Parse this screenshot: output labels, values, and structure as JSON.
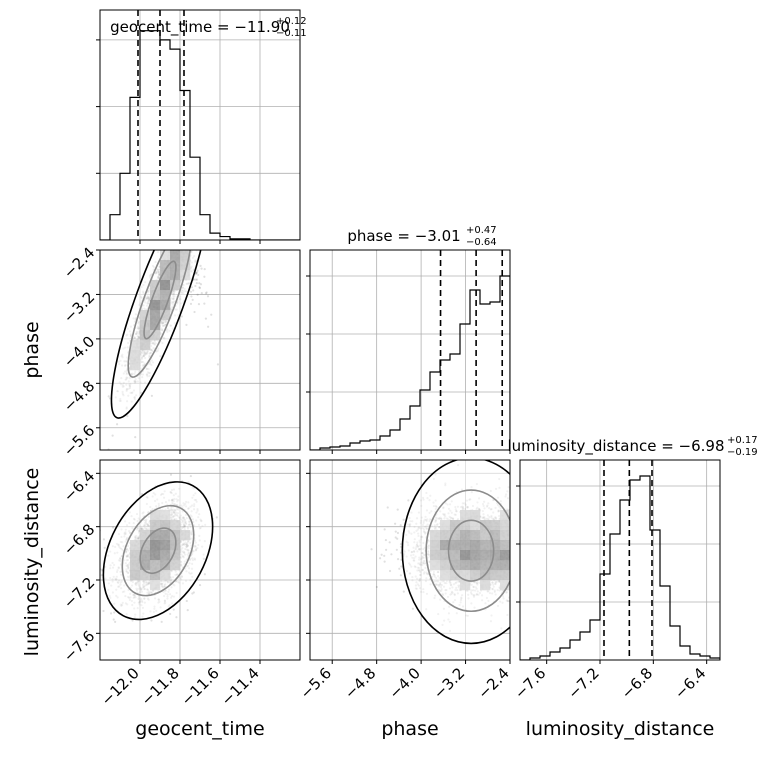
{
  "chart_data": [
    {
      "type": "histogram",
      "param": "geocent_time",
      "title_main": "geocent_time = −11.90",
      "title_sup": "+0.12",
      "title_sub": "−0.11",
      "xlim": [
        -12.2,
        -11.2
      ],
      "ylim": [
        0,
        1.0
      ],
      "x_ticks": [
        -12.0,
        -11.8,
        -11.6,
        -11.4
      ],
      "y_ticks": [
        0.29,
        0.58,
        0.87
      ],
      "quantiles": [
        -12.01,
        -11.9,
        -11.78
      ],
      "bin_edges": [
        -12.2,
        -12.15,
        -12.1,
        -12.05,
        -12.0,
        -11.95,
        -11.9,
        -11.85,
        -11.8,
        -11.75,
        -11.7,
        -11.65,
        -11.6,
        -11.55,
        -11.5,
        -11.45,
        -11.4,
        -11.35,
        -11.3,
        -11.25,
        -11.2
      ],
      "counts": [
        0.0,
        0.11,
        0.29,
        0.62,
        0.91,
        0.91,
        0.87,
        0.83,
        0.65,
        0.36,
        0.11,
        0.03,
        0.015,
        0.005,
        0.005,
        0.0,
        0.0,
        0.0,
        0.0,
        0.0
      ]
    },
    {
      "type": "histogram",
      "param": "phase",
      "title_main": "phase = −3.01",
      "title_sup": "+0.47",
      "title_sub": "−0.64",
      "xlim": [
        -6.0,
        -2.4
      ],
      "ylim": [
        0,
        1.0
      ],
      "x_ticks": [
        -5.6,
        -4.8,
        -4.0,
        -3.2,
        -2.4
      ],
      "y_ticks": [
        0.29,
        0.58,
        0.87
      ],
      "quantiles": [
        -3.65,
        -3.01,
        -2.54
      ],
      "bin_edges": [
        -6.0,
        -5.82,
        -5.64,
        -5.46,
        -5.28,
        -5.1,
        -4.92,
        -4.74,
        -4.56,
        -4.38,
        -4.2,
        -4.02,
        -3.84,
        -3.66,
        -3.48,
        -3.3,
        -3.12,
        -2.94,
        -2.76,
        -2.58,
        -2.4
      ],
      "counts": [
        0.0,
        0.01,
        0.015,
        0.02,
        0.035,
        0.045,
        0.05,
        0.07,
        0.1,
        0.155,
        0.22,
        0.3,
        0.39,
        0.45,
        0.48,
        0.63,
        0.8,
        0.73,
        0.74,
        0.87
      ]
    },
    {
      "type": "histogram",
      "param": "luminosity_distance",
      "title_main": "luminosity_distance = −6.98",
      "title_sup": "+0.17",
      "title_sub": "−0.19",
      "xlim": [
        -7.8,
        -6.3
      ],
      "ylim": [
        0,
        1.0
      ],
      "x_ticks": [
        -7.6,
        -7.2,
        -6.8,
        -6.4
      ],
      "y_ticks": [
        0.29,
        0.58,
        0.87
      ],
      "quantiles": [
        -7.17,
        -6.98,
        -6.81
      ],
      "bin_edges": [
        -7.8,
        -7.725,
        -7.65,
        -7.575,
        -7.5,
        -7.425,
        -7.35,
        -7.275,
        -7.2,
        -7.125,
        -7.05,
        -6.975,
        -6.9,
        -6.825,
        -6.75,
        -6.675,
        -6.6,
        -6.525,
        -6.45,
        -6.375,
        -6.3
      ],
      "counts": [
        0.0,
        0.01,
        0.02,
        0.04,
        0.06,
        0.1,
        0.14,
        0.2,
        0.43,
        0.63,
        0.8,
        0.9,
        0.92,
        0.65,
        0.37,
        0.17,
        0.07,
        0.03,
        0.02,
        0.01
      ]
    },
    {
      "type": "scatter",
      "x_param": "geocent_time",
      "y_param": "phase",
      "xlim": [
        -12.2,
        -11.2
      ],
      "ylim": [
        -6.0,
        -2.4
      ],
      "x_ticks": [
        -12.0,
        -11.8,
        -11.6,
        -11.4
      ],
      "y_ticks": [
        -5.6,
        -4.8,
        -4.0,
        -3.2,
        -2.4
      ],
      "ylabel": "phase",
      "center": [
        -11.9,
        -3.3
      ],
      "sd": [
        0.08,
        0.7
      ],
      "correlation": 0.85,
      "upper_bound_y": -2.4,
      "points": 2400,
      "contour_levels": [
        0.39,
        0.86,
        0.99
      ]
    },
    {
      "type": "scatter",
      "x_param": "geocent_time",
      "y_param": "luminosity_distance",
      "xlim": [
        -12.2,
        -11.2
      ],
      "ylim": [
        -7.8,
        -6.3
      ],
      "x_ticks": [
        -12.0,
        -11.8,
        -11.6,
        -11.4
      ],
      "y_ticks": [
        -7.6,
        -7.2,
        -6.8,
        -6.4
      ],
      "xlabel": "geocent_time",
      "ylabel": "luminosity_distance",
      "center": [
        -11.91,
        -6.98
      ],
      "sd": [
        0.09,
        0.17
      ],
      "correlation": 0.35,
      "points": 2600,
      "contour_levels": [
        0.39,
        0.86,
        0.99
      ]
    },
    {
      "type": "scatter",
      "x_param": "phase",
      "y_param": "luminosity_distance",
      "xlim": [
        -6.0,
        -2.4
      ],
      "ylim": [
        -7.8,
        -6.3
      ],
      "x_ticks": [
        -5.6,
        -4.8,
        -4.0,
        -3.2,
        -2.4
      ],
      "y_ticks": [
        -7.6,
        -7.2,
        -6.8,
        -6.4
      ],
      "xlabel": "phase",
      "center": [
        -3.1,
        -6.98
      ],
      "sd": [
        0.55,
        0.17
      ],
      "correlation": 0.0,
      "upper_bound_x": -2.4,
      "points": 2600,
      "contour_levels": [
        0.39,
        0.86,
        0.99
      ]
    }
  ]
}
